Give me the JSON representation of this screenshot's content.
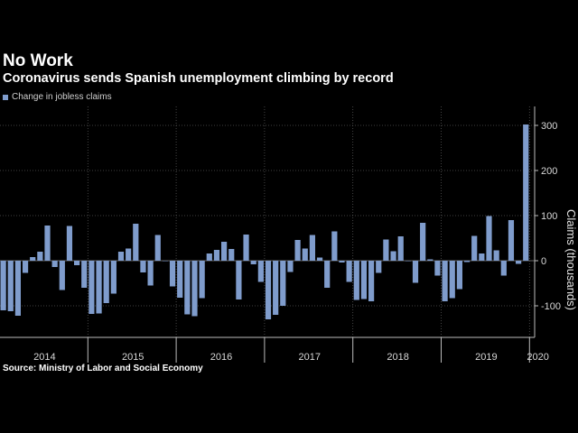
{
  "chart_data": {
    "type": "bar",
    "title": "No Work",
    "subtitle": "Coronavirus sends Spanish unemployment climbing by record",
    "ylabel": "Claims (thousands)",
    "xlabel": "",
    "source": "Source: Ministry of Labor and Social Economy",
    "legend_placement": "top-left",
    "grid": true,
    "ylim": [
      -150,
      340
    ],
    "yticks": [
      -100,
      0,
      100,
      200,
      300
    ],
    "years": [
      "2014",
      "2015",
      "2016",
      "2017",
      "2018",
      "2019",
      "2020"
    ],
    "series": [
      {
        "name": "Change in jobless claims",
        "color": "#7f9ccc",
        "start": "2014-01",
        "values": [
          -110,
          -112,
          -122,
          -27,
          8,
          20,
          78,
          -14,
          -65,
          77,
          -10,
          -60,
          -118,
          -117,
          -94,
          -73,
          20,
          27,
          82,
          -26,
          -55,
          57,
          0,
          -57,
          -82,
          -119,
          -123,
          -83,
          16,
          24,
          42,
          26,
          -86,
          58,
          -8,
          -47,
          -130,
          -120,
          -100,
          -25,
          46,
          27,
          57,
          7,
          -60,
          65,
          -4,
          -47,
          -87,
          -85,
          -90,
          -27,
          47,
          21,
          54,
          0,
          -49,
          84,
          3,
          -33,
          -90,
          -83,
          -63,
          -3,
          55,
          16,
          99,
          23,
          -33,
          90,
          -7,
          302
        ]
      }
    ]
  }
}
